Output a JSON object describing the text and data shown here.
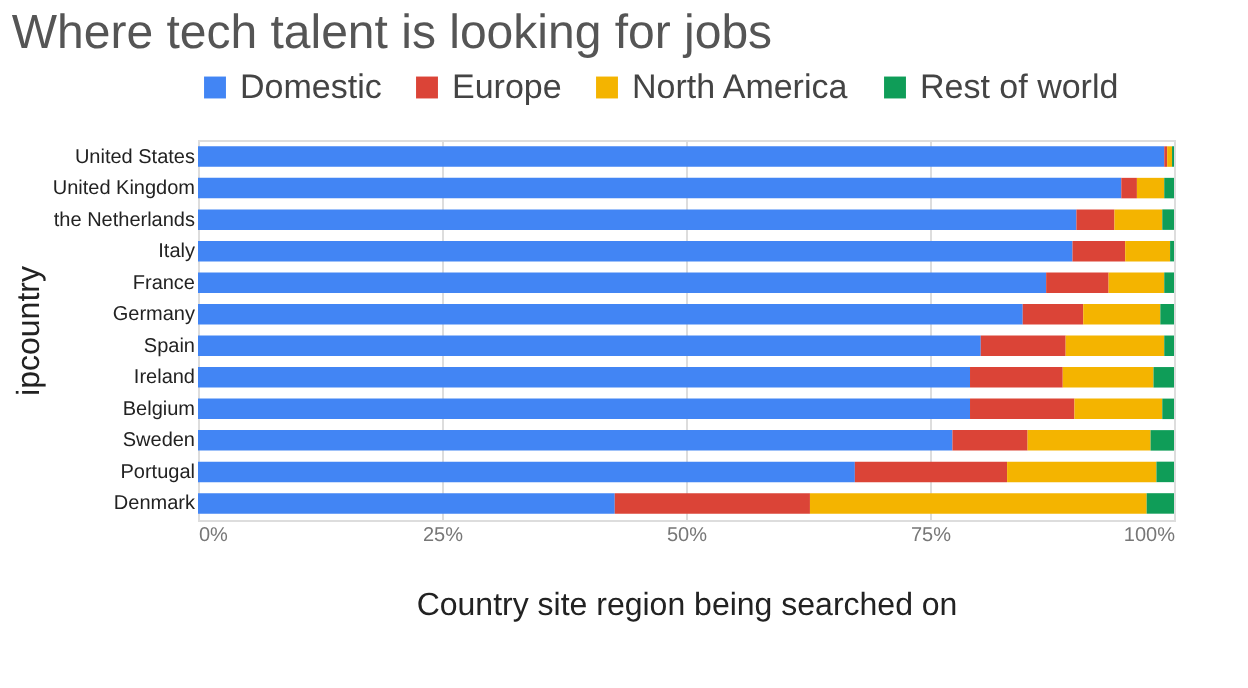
{
  "chart_data": {
    "type": "bar",
    "orientation": "horizontal",
    "stacked": true,
    "title": "Where tech talent is looking for jobs",
    "xlabel": "Country site region being searched on",
    "ylabel": "ipcountry",
    "categories": [
      "United States",
      "United Kingdom",
      "the Netherlands",
      "Italy",
      "France",
      "Germany",
      "Spain",
      "Ireland",
      "Belgium",
      "Sweden",
      "Portugal",
      "Denmark"
    ],
    "series": [
      {
        "name": "Domestic",
        "color": "#4285f4",
        "values": [
          99.0,
          94.6,
          90.0,
          89.6,
          86.9,
          84.5,
          80.2,
          79.1,
          79.1,
          77.3,
          67.3,
          42.7
        ]
      },
      {
        "name": "Europe",
        "color": "#db4437",
        "values": [
          0.3,
          1.6,
          3.9,
          5.4,
          6.4,
          6.2,
          8.7,
          9.5,
          10.7,
          7.7,
          15.6,
          20.0
        ]
      },
      {
        "name": "North America",
        "color": "#f4b400",
        "values": [
          0.5,
          2.8,
          4.9,
          4.6,
          5.7,
          7.9,
          10.1,
          9.3,
          9.0,
          12.6,
          15.3,
          34.5
        ]
      },
      {
        "name": "Rest of world",
        "color": "#0f9d58",
        "values": [
          0.2,
          1.0,
          1.2,
          0.4,
          1.0,
          1.4,
          1.0,
          2.1,
          1.2,
          2.4,
          1.8,
          2.8
        ]
      }
    ],
    "xlim": [
      0,
      100
    ],
    "xticks": [
      {
        "value": 0,
        "label": "0%"
      },
      {
        "value": 25,
        "label": "25%"
      },
      {
        "value": 50,
        "label": "50%"
      },
      {
        "value": 75,
        "label": "75%"
      },
      {
        "value": 100,
        "label": "100%"
      }
    ],
    "grid": "x",
    "legend": "top"
  }
}
